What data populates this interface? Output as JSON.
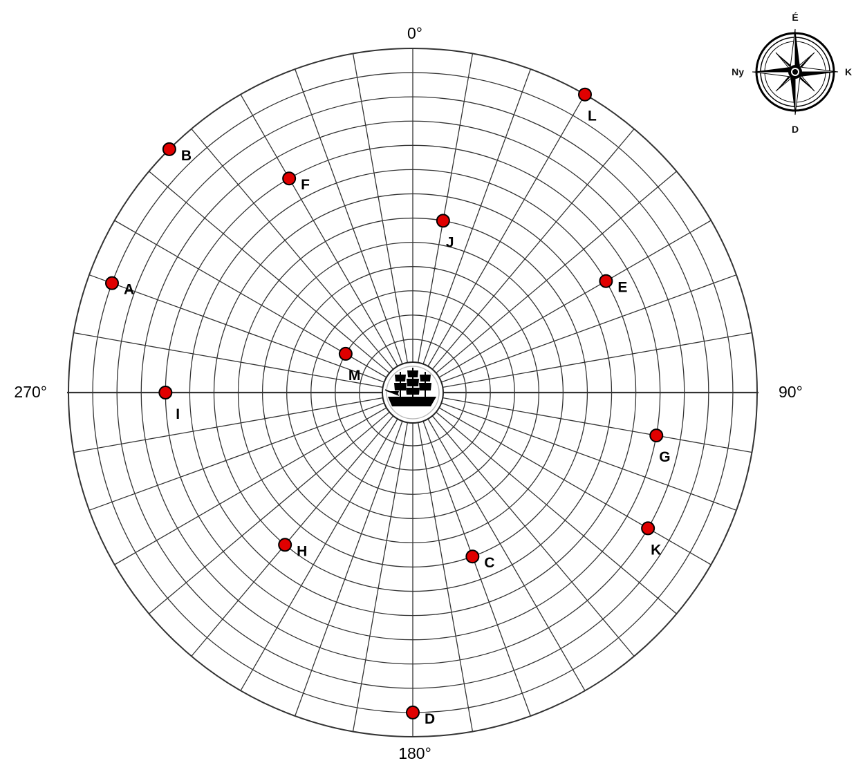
{
  "chart_data": {
    "type": "scatter",
    "coordinate_system": "polar",
    "angle_labels": [
      "0°",
      "90°",
      "180°",
      "270°"
    ],
    "rings": 13,
    "radial_lines_every_deg": 10,
    "points": [
      {
        "label": "A",
        "bearing_deg": 290,
        "range_ring": 12
      },
      {
        "label": "B",
        "bearing_deg": 315,
        "range_ring": 13
      },
      {
        "label": "C",
        "bearing_deg": 160,
        "range_ring": 6
      },
      {
        "label": "D",
        "bearing_deg": 180,
        "range_ring": 12
      },
      {
        "label": "E",
        "bearing_deg": 60,
        "range_ring": 8
      },
      {
        "label": "F",
        "bearing_deg": 330,
        "range_ring": 9
      },
      {
        "label": "G",
        "bearing_deg": 100,
        "range_ring": 9
      },
      {
        "label": "H",
        "bearing_deg": 220,
        "range_ring": 7
      },
      {
        "label": "I",
        "bearing_deg": 270,
        "range_ring": 9
      },
      {
        "label": "J",
        "bearing_deg": 10,
        "range_ring": 6
      },
      {
        "label": "K",
        "bearing_deg": 120,
        "range_ring": 10
      },
      {
        "label": "L",
        "bearing_deg": 30,
        "range_ring": 13
      },
      {
        "label": "M",
        "bearing_deg": 300,
        "range_ring": 2
      }
    ],
    "point_color": "#e00000"
  },
  "compass": {
    "north": "É",
    "east": "K",
    "south": "D",
    "west": "Ny"
  },
  "center_icon": "sailing-ship-icon"
}
